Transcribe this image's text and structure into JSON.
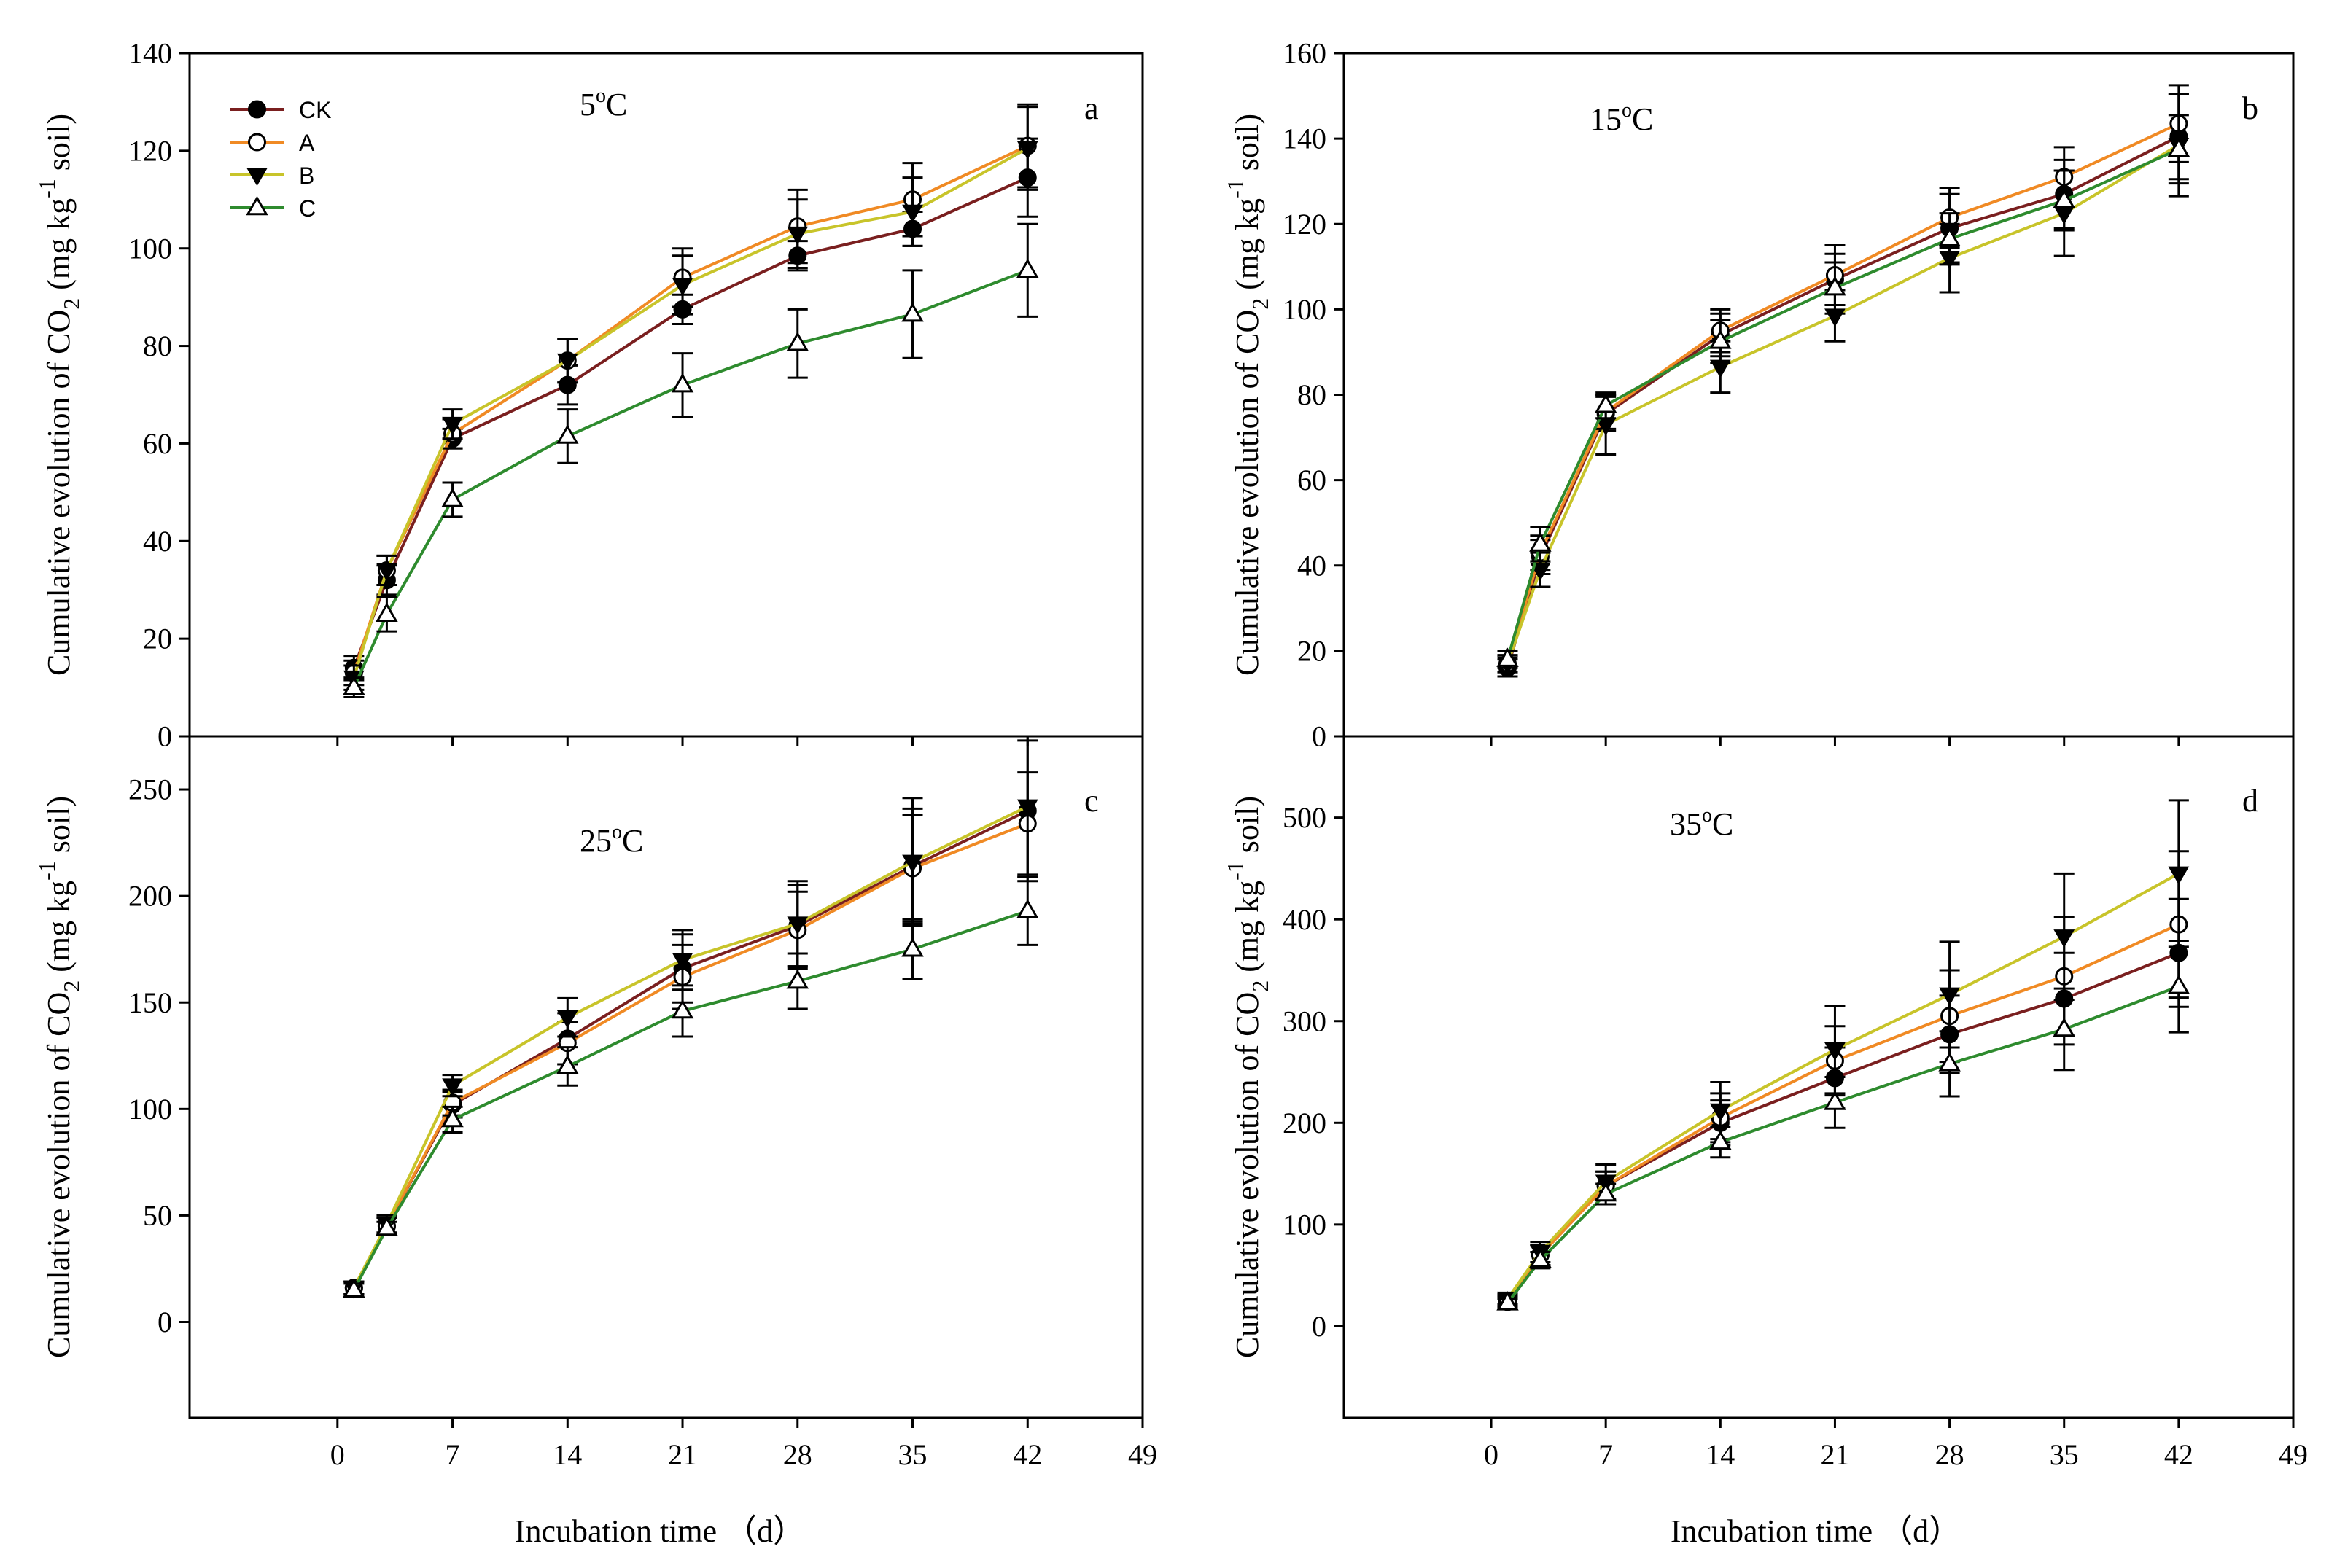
{
  "figure": {
    "y_axis_label": {
      "main": "Cumulative evolution of CO",
      "sub": "2",
      "mid": " (mg kg",
      "sup": "-1",
      "end": " soil)"
    },
    "x_axis_label": "Incubation time （d）"
  },
  "legend": {
    "entries": [
      {
        "name": "CK",
        "marker": "filled-circle",
        "color": "#7a1f1f"
      },
      {
        "name": "A",
        "marker": "open-circle",
        "color": "#f08a24"
      },
      {
        "name": "B",
        "marker": "filled-triangle-down",
        "color": "#c8c42a"
      },
      {
        "name": "C",
        "marker": "open-triangle-up",
        "color": "#2e8b2e"
      }
    ]
  },
  "chart_data": [
    {
      "type": "line",
      "panel_letter": "a",
      "temperature": {
        "value": "5",
        "sup": "o",
        "unit": "C"
      },
      "x": [
        1,
        3,
        7,
        14,
        21,
        28,
        35,
        42
      ],
      "xlim": [
        -9,
        49
      ],
      "xticks": [
        0,
        7,
        14,
        21,
        28,
        35,
        42,
        49
      ],
      "ylim": [
        0,
        140
      ],
      "yticks": [
        0,
        20,
        40,
        60,
        80,
        100,
        120,
        140
      ],
      "series": [
        {
          "name": "CK",
          "values": [
            14,
            32,
            61,
            72,
            87.5,
            98.5,
            104,
            114.5
          ],
          "errors": [
            2.5,
            3,
            2,
            4,
            3,
            3,
            3.5,
            8
          ]
        },
        {
          "name": "A",
          "values": [
            13,
            34,
            62,
            77,
            94,
            104.5,
            110,
            121
          ],
          "errors": [
            2.5,
            3,
            3,
            4.5,
            6,
            7.5,
            7.5,
            8.5
          ]
        },
        {
          "name": "B",
          "values": [
            12,
            34,
            64,
            77,
            92.5,
            103,
            107.5,
            120.5
          ],
          "errors": [
            2.5,
            3,
            3,
            4.5,
            6,
            7,
            7,
            8.5
          ]
        },
        {
          "name": "C",
          "values": [
            10,
            25,
            48.5,
            61.5,
            72,
            80.5,
            86.5,
            95.5
          ],
          "errors": [
            2,
            3.5,
            3.5,
            5.5,
            6.5,
            7,
            9,
            9.5
          ]
        }
      ]
    },
    {
      "type": "line",
      "panel_letter": "b",
      "temperature": {
        "value": "15",
        "sup": "o",
        "unit": "C"
      },
      "x": [
        1,
        3,
        7,
        14,
        21,
        28,
        35,
        42
      ],
      "xlim": [
        -9,
        49
      ],
      "xticks": [
        0,
        7,
        14,
        21,
        28,
        35,
        42,
        49
      ],
      "ylim": [
        0,
        160
      ],
      "yticks": [
        0,
        20,
        40,
        60,
        80,
        100,
        120,
        140,
        160
      ],
      "series": [
        {
          "name": "CK",
          "values": [
            16,
            42,
            75.5,
            94,
            107,
            119,
            127,
            140.5
          ],
          "errors": [
            2,
            4,
            4,
            5,
            6,
            8,
            8,
            10
          ]
        },
        {
          "name": "A",
          "values": [
            17,
            43,
            76,
            95,
            108,
            121.5,
            131,
            143.5
          ],
          "errors": [
            2,
            4,
            4,
            5,
            7,
            7,
            7,
            9
          ]
        },
        {
          "name": "B",
          "values": [
            17,
            39,
            73,
            86.5,
            98.5,
            112,
            122.5,
            138.5
          ],
          "errors": [
            2,
            4,
            7,
            6,
            6,
            8,
            10,
            12
          ]
        },
        {
          "name": "C",
          "values": [
            18,
            45,
            77.5,
            92.5,
            105,
            116.5,
            125.5,
            137.5
          ],
          "errors": [
            2,
            4,
            3,
            5,
            6,
            6,
            7,
            8
          ]
        }
      ]
    },
    {
      "type": "line",
      "panel_letter": "c",
      "temperature": {
        "value": "25",
        "sup": "o",
        "unit": "C"
      },
      "x": [
        1,
        3,
        7,
        14,
        21,
        28,
        35,
        42
      ],
      "xlim": [
        -9,
        49
      ],
      "xticks": [
        0,
        7,
        14,
        21,
        28,
        35,
        42,
        49
      ],
      "ylim": [
        -45,
        275
      ],
      "yticks": [
        0,
        50,
        100,
        150,
        200,
        250
      ],
      "series": [
        {
          "name": "CK",
          "values": [
            16,
            45,
            102,
            133,
            166,
            186,
            214,
            240
          ],
          "errors": [
            3,
            4,
            6,
            12,
            16,
            19,
            27,
            33
          ]
        },
        {
          "name": "A",
          "values": [
            16,
            45,
            103,
            131,
            162,
            184,
            213,
            234
          ],
          "errors": [
            3,
            4,
            6,
            10,
            15,
            18,
            25,
            24
          ]
        },
        {
          "name": "B",
          "values": [
            16,
            46,
            111,
            143,
            170,
            187,
            216,
            242
          ],
          "errors": [
            3,
            4,
            5,
            9,
            14,
            20,
            30,
            33
          ]
        },
        {
          "name": "C",
          "values": [
            15,
            44,
            95,
            120,
            146,
            160,
            175,
            193
          ],
          "errors": [
            3,
            3,
            6,
            9,
            12,
            13,
            14,
            16
          ]
        }
      ]
    },
    {
      "type": "line",
      "panel_letter": "d",
      "temperature": {
        "value": "35",
        "sup": "o",
        "unit": "C"
      },
      "x": [
        1,
        3,
        7,
        14,
        21,
        28,
        35,
        42
      ],
      "xlim": [
        -9,
        49
      ],
      "xticks": [
        0,
        7,
        14,
        21,
        28,
        35,
        42,
        49
      ],
      "ylim": [
        -90,
        580
      ],
      "yticks": [
        0,
        100,
        200,
        300,
        400,
        500
      ],
      "series": [
        {
          "name": "CK",
          "values": [
            25,
            70,
            138,
            200,
            244,
            287,
            322,
            367
          ],
          "errors": [
            5,
            10,
            14,
            22,
            30,
            38,
            45,
            53
          ]
        },
        {
          "name": "A",
          "values": [
            24,
            70,
            138,
            205,
            261,
            305,
            344,
            395
          ],
          "errors": [
            5,
            10,
            14,
            24,
            34,
            45,
            58,
            72
          ]
        },
        {
          "name": "B",
          "values": [
            27,
            73,
            142,
            212,
            272,
            326,
            383,
            445
          ],
          "errors": [
            5,
            10,
            17,
            28,
            43,
            52,
            62,
            72
          ]
        },
        {
          "name": "C",
          "values": [
            23,
            65,
            130,
            181,
            220,
            258,
            292,
            334
          ],
          "errors": [
            4,
            8,
            10,
            15,
            25,
            32,
            40,
            45
          ]
        }
      ]
    }
  ]
}
